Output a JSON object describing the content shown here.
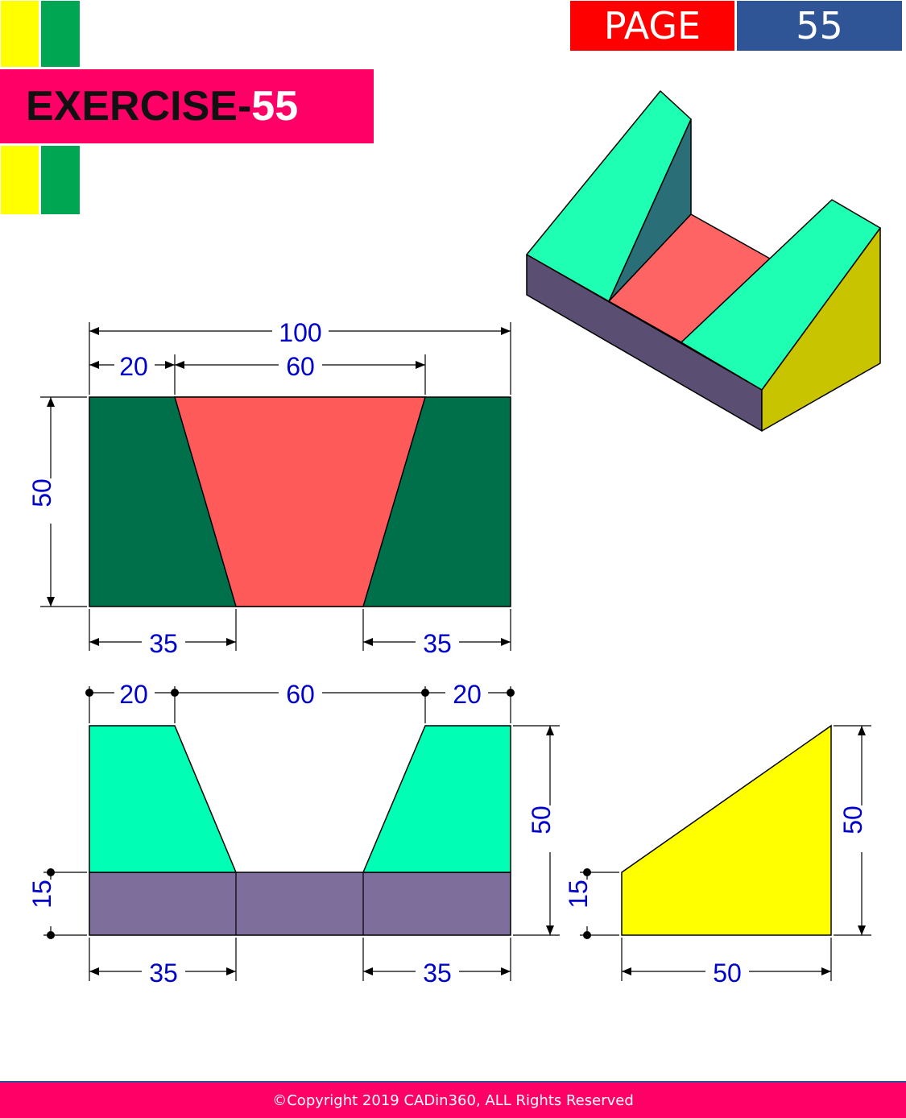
{
  "header": {
    "page_label": "PAGE",
    "page_number": "55",
    "exercise_prefix": "EXERCISE-",
    "exercise_number": "55"
  },
  "colors": {
    "page_label_bg": "#ff0000",
    "page_number_bg": "#2f5597",
    "banner_bg": "#ff0066",
    "accent_yellow": "#ffff00",
    "accent_green": "#00a651",
    "top_view_dark_green": "#00704a",
    "slot_red": "#ff5a5a",
    "front_green": "#00ffb4",
    "base_purple": "#7e6e9c",
    "side_yellow": "#ffff00",
    "dimension_blue": "#0000cc"
  },
  "views": {
    "top": {
      "dims": {
        "overall_width": "100",
        "left_top": "20",
        "slot_top": "60",
        "depth": "50",
        "left_bottom": "35",
        "right_bottom": "35"
      }
    },
    "front": {
      "dims": {
        "left_top": "20",
        "slot_top": "60",
        "right_top": "20",
        "height": "50",
        "base_height": "15",
        "left_bottom": "35",
        "right_bottom": "35"
      }
    },
    "side": {
      "dims": {
        "height": "50",
        "base_height": "15",
        "width": "50"
      }
    }
  },
  "footer": {
    "copyright": "©Copyright 2019 CADin360, ALL Rights Reserved"
  }
}
